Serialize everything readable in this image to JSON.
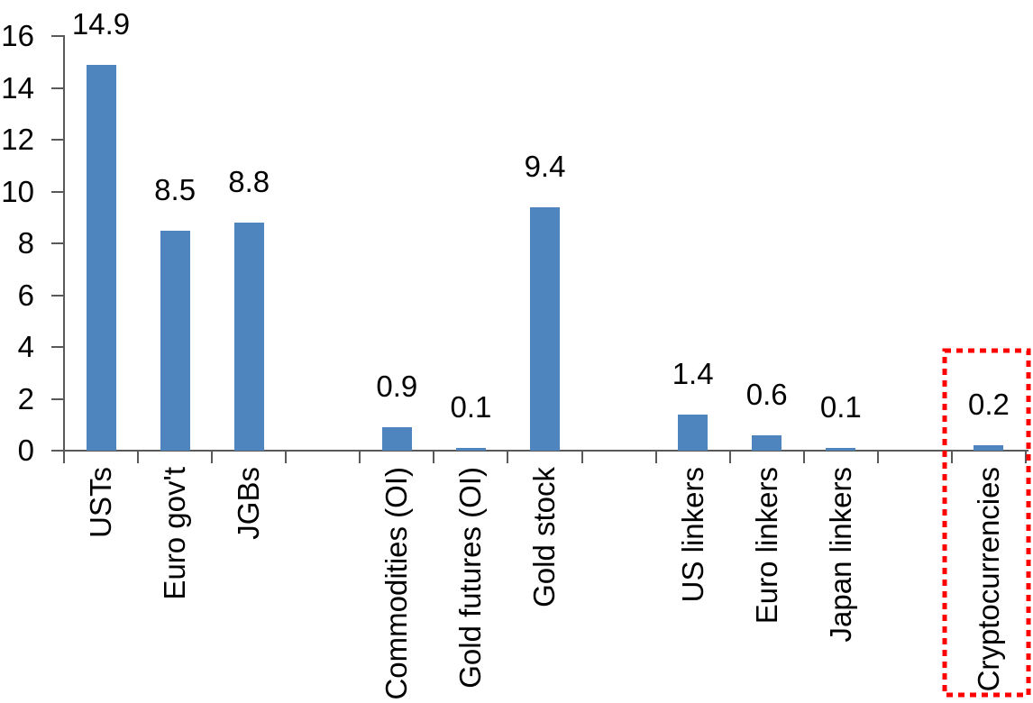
{
  "chart_data": {
    "type": "bar",
    "title": "",
    "xlabel": "",
    "ylabel": "",
    "y_axis": {
      "min": 0,
      "max": 16,
      "tick_step": 2,
      "ticks": [
        0,
        2,
        4,
        6,
        8,
        10,
        12,
        14,
        16
      ]
    },
    "grid": "off",
    "legend": "none",
    "total_slots": 13,
    "bars": [
      {
        "label": "USTs",
        "value": 14.9,
        "value_label": "14.9",
        "slot": 0,
        "highlighted": false
      },
      {
        "label": "Euro gov't",
        "value": 8.5,
        "value_label": "8.5",
        "slot": 1,
        "highlighted": false
      },
      {
        "label": "JGBs",
        "value": 8.8,
        "value_label": "8.8",
        "slot": 2,
        "highlighted": false
      },
      {
        "label": "Commodities (OI)",
        "value": 0.9,
        "value_label": "0.9",
        "slot": 4,
        "highlighted": false
      },
      {
        "label": "Gold futures (OI)",
        "value": 0.1,
        "value_label": "0.1",
        "slot": 5,
        "highlighted": false
      },
      {
        "label": "Gold stock",
        "value": 9.4,
        "value_label": "9.4",
        "slot": 6,
        "highlighted": false
      },
      {
        "label": "US linkers",
        "value": 1.4,
        "value_label": "1.4",
        "slot": 8,
        "highlighted": false
      },
      {
        "label": "Euro linkers",
        "value": 0.6,
        "value_label": "0.6",
        "slot": 9,
        "highlighted": false
      },
      {
        "label": "Japan linkers",
        "value": 0.1,
        "value_label": "0.1",
        "slot": 10,
        "highlighted": false
      },
      {
        "label": "Cryptocurrencies",
        "value": 0.2,
        "value_label": "0.2",
        "slot": 12,
        "highlighted": true
      }
    ],
    "colors": {
      "bar": "#4E85BE",
      "axis": "#595959",
      "text": "#000000",
      "highlight_box": "#FF0000"
    },
    "highlight": {
      "target": "Cryptocurrencies",
      "style": "red-dotted-box"
    }
  }
}
